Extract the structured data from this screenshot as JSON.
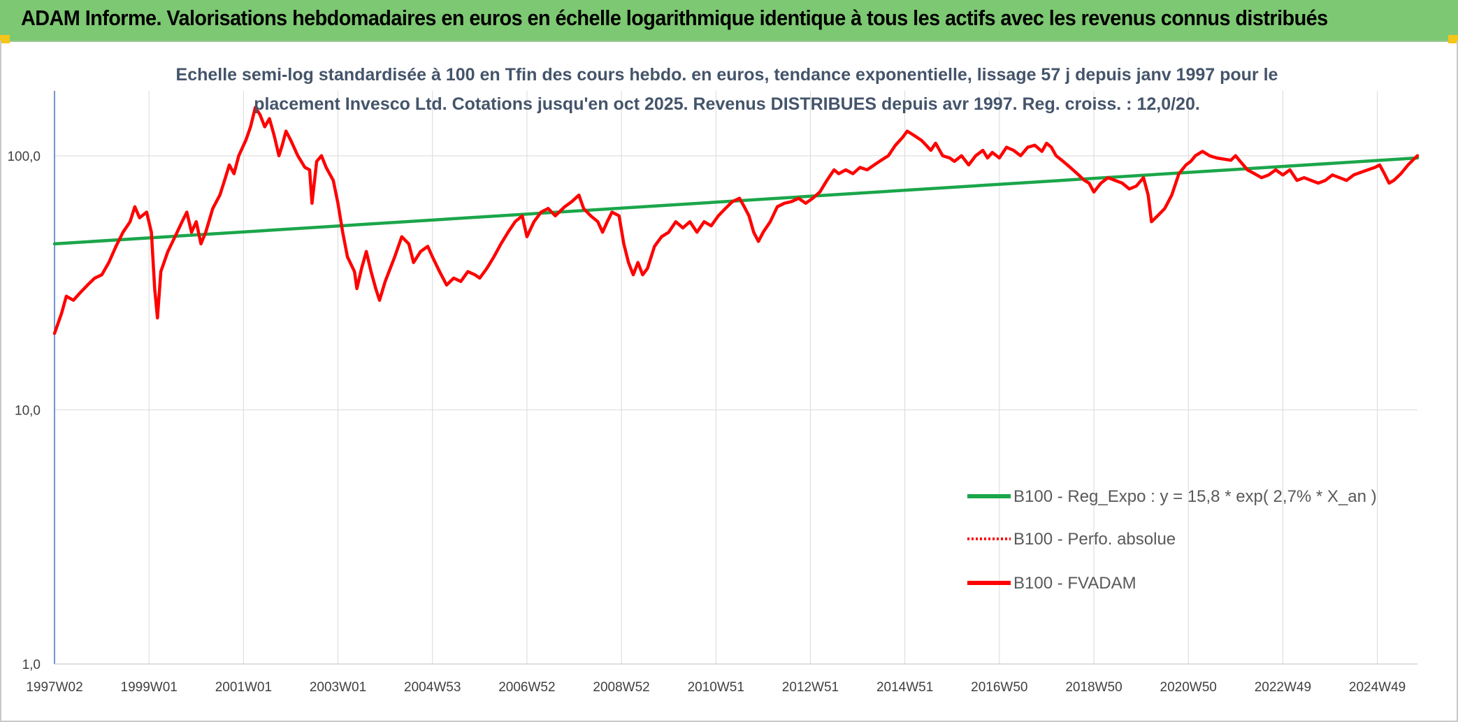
{
  "header": {
    "title": "ADAM Informe. Valorisations hebdomadaires en euros en échelle logarithmique identique à tous les actifs avec les revenus connus distribués"
  },
  "chart_data": {
    "type": "line",
    "title_lines": [
      "Echelle semi-log standardisée à 100 en Tfin des cours hebdo. en euros, tendance exponentielle, lissage 57 j depuis janv 1997 pour le",
      "placement Invesco Ltd. Cotations jusqu'en oct 2025. Revenus DISTRIBUES depuis avr 1997. Reg. croiss. : 12,0/20."
    ],
    "y_scale": "log",
    "ylim": [
      1,
      180
    ],
    "xlim": [
      1997.0,
      2025.85
    ],
    "y_ticks": [
      {
        "value": 1,
        "label": "1,0"
      },
      {
        "value": 10,
        "label": "10,0"
      },
      {
        "value": 100,
        "label": "100,0"
      }
    ],
    "x_ticks": [
      {
        "value": 1997.0,
        "label": "1997W02"
      },
      {
        "value": 1999.0,
        "label": "1999W01"
      },
      {
        "value": 2001.0,
        "label": "2001W01"
      },
      {
        "value": 2003.0,
        "label": "2003W01"
      },
      {
        "value": 2005.0,
        "label": "2004W53"
      },
      {
        "value": 2007.0,
        "label": "2006W52"
      },
      {
        "value": 2009.0,
        "label": "2008W52"
      },
      {
        "value": 2011.0,
        "label": "2010W51"
      },
      {
        "value": 2013.0,
        "label": "2012W51"
      },
      {
        "value": 2015.0,
        "label": "2014W51"
      },
      {
        "value": 2017.0,
        "label": "2016W50"
      },
      {
        "value": 2019.0,
        "label": "2018W50"
      },
      {
        "value": 2021.0,
        "label": "2020W50"
      },
      {
        "value": 2023.0,
        "label": "2022W49"
      },
      {
        "value": 2025.0,
        "label": "2024W49"
      }
    ],
    "grid": {
      "vertical": true,
      "horizontal": true
    },
    "legend_position": "bottom-right",
    "series": [
      {
        "name": "B100 - Reg_Expo : y = 15,8 * exp( 2,7% *  X_an )",
        "color": "#1aa64a",
        "style": "solid",
        "points": [
          [
            1997.0,
            45
          ],
          [
            2025.85,
            98
          ]
        ]
      },
      {
        "name": "B100 - Perfo. absolue",
        "color": "#ff0000",
        "style": "dotted",
        "points": []
      },
      {
        "name": "B100 - FVADAM",
        "color": "#ff0000",
        "style": "solid",
        "points": [
          [
            1997.0,
            20
          ],
          [
            1997.15,
            24
          ],
          [
            1997.25,
            28
          ],
          [
            1997.4,
            27
          ],
          [
            1997.55,
            29
          ],
          [
            1997.7,
            31
          ],
          [
            1997.85,
            33
          ],
          [
            1998.0,
            34
          ],
          [
            1998.15,
            38
          ],
          [
            1998.3,
            44
          ],
          [
            1998.45,
            50
          ],
          [
            1998.6,
            55
          ],
          [
            1998.7,
            63
          ],
          [
            1998.8,
            57
          ],
          [
            1998.95,
            60
          ],
          [
            1999.05,
            50
          ],
          [
            1999.12,
            30
          ],
          [
            1999.18,
            23
          ],
          [
            1999.25,
            35
          ],
          [
            1999.4,
            42
          ],
          [
            1999.55,
            48
          ],
          [
            1999.7,
            55
          ],
          [
            1999.8,
            60
          ],
          [
            1999.9,
            50
          ],
          [
            2000.0,
            55
          ],
          [
            2000.1,
            45
          ],
          [
            2000.2,
            50
          ],
          [
            2000.35,
            62
          ],
          [
            2000.5,
            70
          ],
          [
            2000.6,
            80
          ],
          [
            2000.7,
            92
          ],
          [
            2000.8,
            85
          ],
          [
            2000.9,
            100
          ],
          [
            2001.05,
            115
          ],
          [
            2001.15,
            130
          ],
          [
            2001.25,
            155
          ],
          [
            2001.35,
            145
          ],
          [
            2001.45,
            130
          ],
          [
            2001.55,
            140
          ],
          [
            2001.65,
            120
          ],
          [
            2001.75,
            100
          ],
          [
            2001.82,
            110
          ],
          [
            2001.9,
            125
          ],
          [
            2002.0,
            115
          ],
          [
            2002.15,
            100
          ],
          [
            2002.3,
            90
          ],
          [
            2002.4,
            88
          ],
          [
            2002.45,
            65
          ],
          [
            2002.55,
            95
          ],
          [
            2002.65,
            100
          ],
          [
            2002.75,
            90
          ],
          [
            2002.9,
            80
          ],
          [
            2003.0,
            65
          ],
          [
            2003.1,
            50
          ],
          [
            2003.2,
            40
          ],
          [
            2003.35,
            35
          ],
          [
            2003.4,
            30
          ],
          [
            2003.5,
            36
          ],
          [
            2003.6,
            42
          ],
          [
            2003.7,
            35
          ],
          [
            2003.8,
            30
          ],
          [
            2003.88,
            27
          ],
          [
            2004.0,
            32
          ],
          [
            2004.2,
            40
          ],
          [
            2004.35,
            48
          ],
          [
            2004.5,
            45
          ],
          [
            2004.6,
            38
          ],
          [
            2004.75,
            42
          ],
          [
            2004.9,
            44
          ],
          [
            2005.0,
            40
          ],
          [
            2005.15,
            35
          ],
          [
            2005.3,
            31
          ],
          [
            2005.45,
            33
          ],
          [
            2005.6,
            32
          ],
          [
            2005.75,
            35
          ],
          [
            2005.9,
            34
          ],
          [
            2006.0,
            33
          ],
          [
            2006.15,
            36
          ],
          [
            2006.3,
            40
          ],
          [
            2006.45,
            45
          ],
          [
            2006.6,
            50
          ],
          [
            2006.75,
            55
          ],
          [
            2006.9,
            58
          ],
          [
            2007.0,
            48
          ],
          [
            2007.15,
            55
          ],
          [
            2007.3,
            60
          ],
          [
            2007.45,
            62
          ],
          [
            2007.6,
            58
          ],
          [
            2007.8,
            63
          ],
          [
            2007.95,
            66
          ],
          [
            2008.1,
            70
          ],
          [
            2008.2,
            62
          ],
          [
            2008.35,
            58
          ],
          [
            2008.5,
            55
          ],
          [
            2008.6,
            50
          ],
          [
            2008.7,
            55
          ],
          [
            2008.8,
            60
          ],
          [
            2008.95,
            58
          ],
          [
            2009.05,
            45
          ],
          [
            2009.15,
            38
          ],
          [
            2009.25,
            34
          ],
          [
            2009.35,
            38
          ],
          [
            2009.45,
            34
          ],
          [
            2009.55,
            36
          ],
          [
            2009.7,
            44
          ],
          [
            2009.85,
            48
          ],
          [
            2010.0,
            50
          ],
          [
            2010.15,
            55
          ],
          [
            2010.3,
            52
          ],
          [
            2010.45,
            55
          ],
          [
            2010.6,
            50
          ],
          [
            2010.75,
            55
          ],
          [
            2010.9,
            53
          ],
          [
            2011.05,
            58
          ],
          [
            2011.2,
            62
          ],
          [
            2011.35,
            66
          ],
          [
            2011.5,
            68
          ],
          [
            2011.6,
            63
          ],
          [
            2011.7,
            58
          ],
          [
            2011.8,
            50
          ],
          [
            2011.9,
            46
          ],
          [
            2012.0,
            50
          ],
          [
            2012.15,
            55
          ],
          [
            2012.3,
            63
          ],
          [
            2012.45,
            65
          ],
          [
            2012.6,
            66
          ],
          [
            2012.75,
            68
          ],
          [
            2012.9,
            65
          ],
          [
            2013.05,
            68
          ],
          [
            2013.2,
            72
          ],
          [
            2013.35,
            80
          ],
          [
            2013.5,
            88
          ],
          [
            2013.6,
            85
          ],
          [
            2013.75,
            88
          ],
          [
            2013.9,
            85
          ],
          [
            2014.05,
            90
          ],
          [
            2014.2,
            88
          ],
          [
            2014.35,
            92
          ],
          [
            2014.5,
            96
          ],
          [
            2014.65,
            100
          ],
          [
            2014.8,
            110
          ],
          [
            2014.95,
            118
          ],
          [
            2015.05,
            125
          ],
          [
            2015.2,
            120
          ],
          [
            2015.35,
            115
          ],
          [
            2015.45,
            110
          ],
          [
            2015.55,
            105
          ],
          [
            2015.65,
            112
          ],
          [
            2015.8,
            100
          ],
          [
            2015.95,
            98
          ],
          [
            2016.05,
            95
          ],
          [
            2016.2,
            100
          ],
          [
            2016.35,
            92
          ],
          [
            2016.5,
            100
          ],
          [
            2016.65,
            105
          ],
          [
            2016.75,
            98
          ],
          [
            2016.85,
            103
          ],
          [
            2017.0,
            98
          ],
          [
            2017.15,
            108
          ],
          [
            2017.3,
            105
          ],
          [
            2017.45,
            100
          ],
          [
            2017.6,
            108
          ],
          [
            2017.75,
            110
          ],
          [
            2017.9,
            104
          ],
          [
            2018.0,
            112
          ],
          [
            2018.1,
            108
          ],
          [
            2018.2,
            100
          ],
          [
            2018.35,
            95
          ],
          [
            2018.5,
            90
          ],
          [
            2018.65,
            85
          ],
          [
            2018.8,
            80
          ],
          [
            2018.9,
            78
          ],
          [
            2019.0,
            72
          ],
          [
            2019.15,
            78
          ],
          [
            2019.3,
            82
          ],
          [
            2019.45,
            80
          ],
          [
            2019.6,
            78
          ],
          [
            2019.75,
            74
          ],
          [
            2019.9,
            76
          ],
          [
            2020.05,
            82
          ],
          [
            2020.15,
            70
          ],
          [
            2020.22,
            55
          ],
          [
            2020.35,
            58
          ],
          [
            2020.5,
            62
          ],
          [
            2020.65,
            70
          ],
          [
            2020.8,
            85
          ],
          [
            2020.95,
            92
          ],
          [
            2021.05,
            95
          ],
          [
            2021.15,
            100
          ],
          [
            2021.3,
            104
          ],
          [
            2021.45,
            100
          ],
          [
            2021.6,
            98
          ],
          [
            2021.75,
            97
          ],
          [
            2021.9,
            96
          ],
          [
            2022.0,
            100
          ],
          [
            2022.1,
            95
          ],
          [
            2022.25,
            88
          ],
          [
            2022.4,
            85
          ],
          [
            2022.55,
            82
          ],
          [
            2022.7,
            84
          ],
          [
            2022.85,
            88
          ],
          [
            2023.0,
            84
          ],
          [
            2023.15,
            88
          ],
          [
            2023.3,
            80
          ],
          [
            2023.45,
            82
          ],
          [
            2023.6,
            80
          ],
          [
            2023.75,
            78
          ],
          [
            2023.9,
            80
          ],
          [
            2024.05,
            84
          ],
          [
            2024.2,
            82
          ],
          [
            2024.35,
            80
          ],
          [
            2024.5,
            84
          ],
          [
            2024.65,
            86
          ],
          [
            2024.8,
            88
          ],
          [
            2024.95,
            90
          ],
          [
            2025.05,
            92
          ],
          [
            2025.15,
            85
          ],
          [
            2025.25,
            78
          ],
          [
            2025.35,
            80
          ],
          [
            2025.5,
            85
          ],
          [
            2025.65,
            92
          ],
          [
            2025.75,
            96
          ],
          [
            2025.85,
            100
          ]
        ]
      }
    ]
  }
}
